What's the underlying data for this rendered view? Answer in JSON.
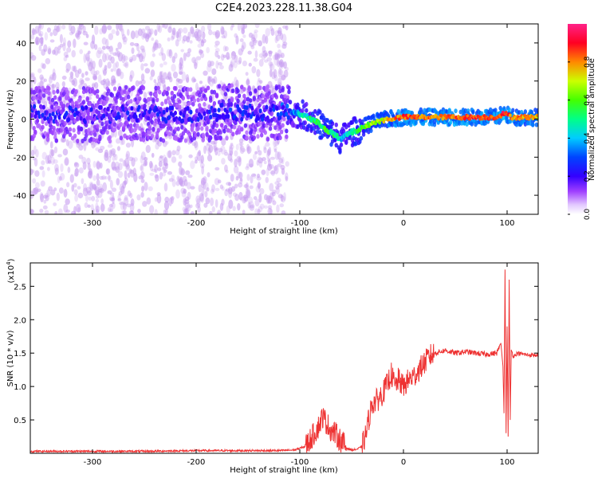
{
  "title": "C2E4.2023.228.11.38.G04",
  "colors": {
    "snr_line": "#ee3333",
    "spectro_low": "#d4b8f5",
    "spectro_mid": "#5500dd",
    "axes": "#000000"
  },
  "chart_data": [
    {
      "type": "heatmap",
      "xlabel": "Height of straight line (km)",
      "ylabel": "Frequency (Hz)",
      "xlim": [
        -360,
        130
      ],
      "ylim": [
        -50,
        50
      ],
      "xticks": [
        -300,
        -200,
        -100,
        0,
        100
      ],
      "yticks": [
        -40,
        -20,
        0,
        20,
        40
      ],
      "colorbar": {
        "label": "Normalized spectral amplitude",
        "range": [
          0,
          1
        ],
        "ticks": [
          "0.0",
          "0.2",
          "0.4",
          "0.6",
          "0.8"
        ],
        "colormap": [
          "#ffffff",
          "#d9b3ff",
          "#9a33ff",
          "#3300ff",
          "#0033ff",
          "#00ccff",
          "#00ff66",
          "#ccff00",
          "#ff8800",
          "#ff0033",
          "#ff3399"
        ]
      },
      "ridge": {
        "description_points_x": [
          -360,
          -300,
          -250,
          -200,
          -170,
          -130,
          -110,
          -95,
          -80,
          -70,
          -60,
          -55,
          -45,
          -30,
          -15,
          0,
          30,
          60,
          90,
          97,
          105,
          130
        ],
        "description_points_y": [
          3,
          2,
          3,
          2,
          4,
          3,
          4,
          2,
          -3,
          -7,
          -11,
          -8,
          -6,
          -2,
          0,
          1,
          1,
          1,
          1,
          3,
          1,
          1
        ],
        "amplitude": [
          0.2,
          0.2,
          0.2,
          0.2,
          0.25,
          0.2,
          0.3,
          0.45,
          0.55,
          0.55,
          0.4,
          0.45,
          0.5,
          0.65,
          0.75,
          0.85,
          0.8,
          0.85,
          0.85,
          0.9,
          0.8,
          0.75
        ]
      }
    },
    {
      "type": "line",
      "xlabel": "Height of straight line (km)",
      "ylabel": "SNR (10 * v/v)",
      "yunit_multiplier": "(x10",
      "yunit_exponent": "4",
      "yunit_close": ")",
      "xlim": [
        -360,
        130
      ],
      "ylim": [
        0,
        2.85
      ],
      "xticks": [
        -300,
        -200,
        -100,
        0,
        100
      ],
      "yticks": [
        0.5,
        1.0,
        1.5,
        2.0,
        2.5
      ],
      "ytick_labels": [
        "0.5",
        "1.0",
        "1.5",
        "2.0",
        "2.5"
      ],
      "series": [
        {
          "x": [
            -360,
            -300,
            -250,
            -200,
            -150,
            -120,
            -105,
            -95,
            -88,
            -82,
            -78,
            -74,
            -70,
            -66,
            -62,
            -58,
            -55,
            -50,
            -45,
            -40,
            -36,
            -33,
            -30,
            -25,
            -20,
            -15,
            -12,
            -8,
            -5,
            0,
            5,
            10,
            15,
            20,
            25,
            30,
            35,
            40,
            50,
            60,
            70,
            80,
            90,
            94,
            96,
            97,
            98,
            99,
            100,
            101,
            102,
            103,
            104,
            106,
            110,
            120,
            130
          ],
          "y": [
            0.03,
            0.03,
            0.03,
            0.04,
            0.04,
            0.04,
            0.05,
            0.1,
            0.25,
            0.4,
            0.55,
            0.45,
            0.35,
            0.3,
            0.22,
            0.15,
            0.08,
            0.05,
            0.06,
            0.1,
            0.3,
            0.55,
            0.75,
            0.8,
            0.9,
            1.05,
            1.2,
            1.0,
            1.1,
            1.0,
            1.1,
            1.15,
            1.25,
            1.35,
            1.45,
            1.5,
            1.52,
            1.54,
            1.5,
            1.52,
            1.5,
            1.48,
            1.5,
            1.65,
            1.3,
            0.6,
            2.75,
            0.3,
            1.9,
            0.25,
            2.6,
            0.5,
            1.55,
            1.45,
            1.5,
            1.47,
            1.47
          ]
        }
      ]
    }
  ]
}
